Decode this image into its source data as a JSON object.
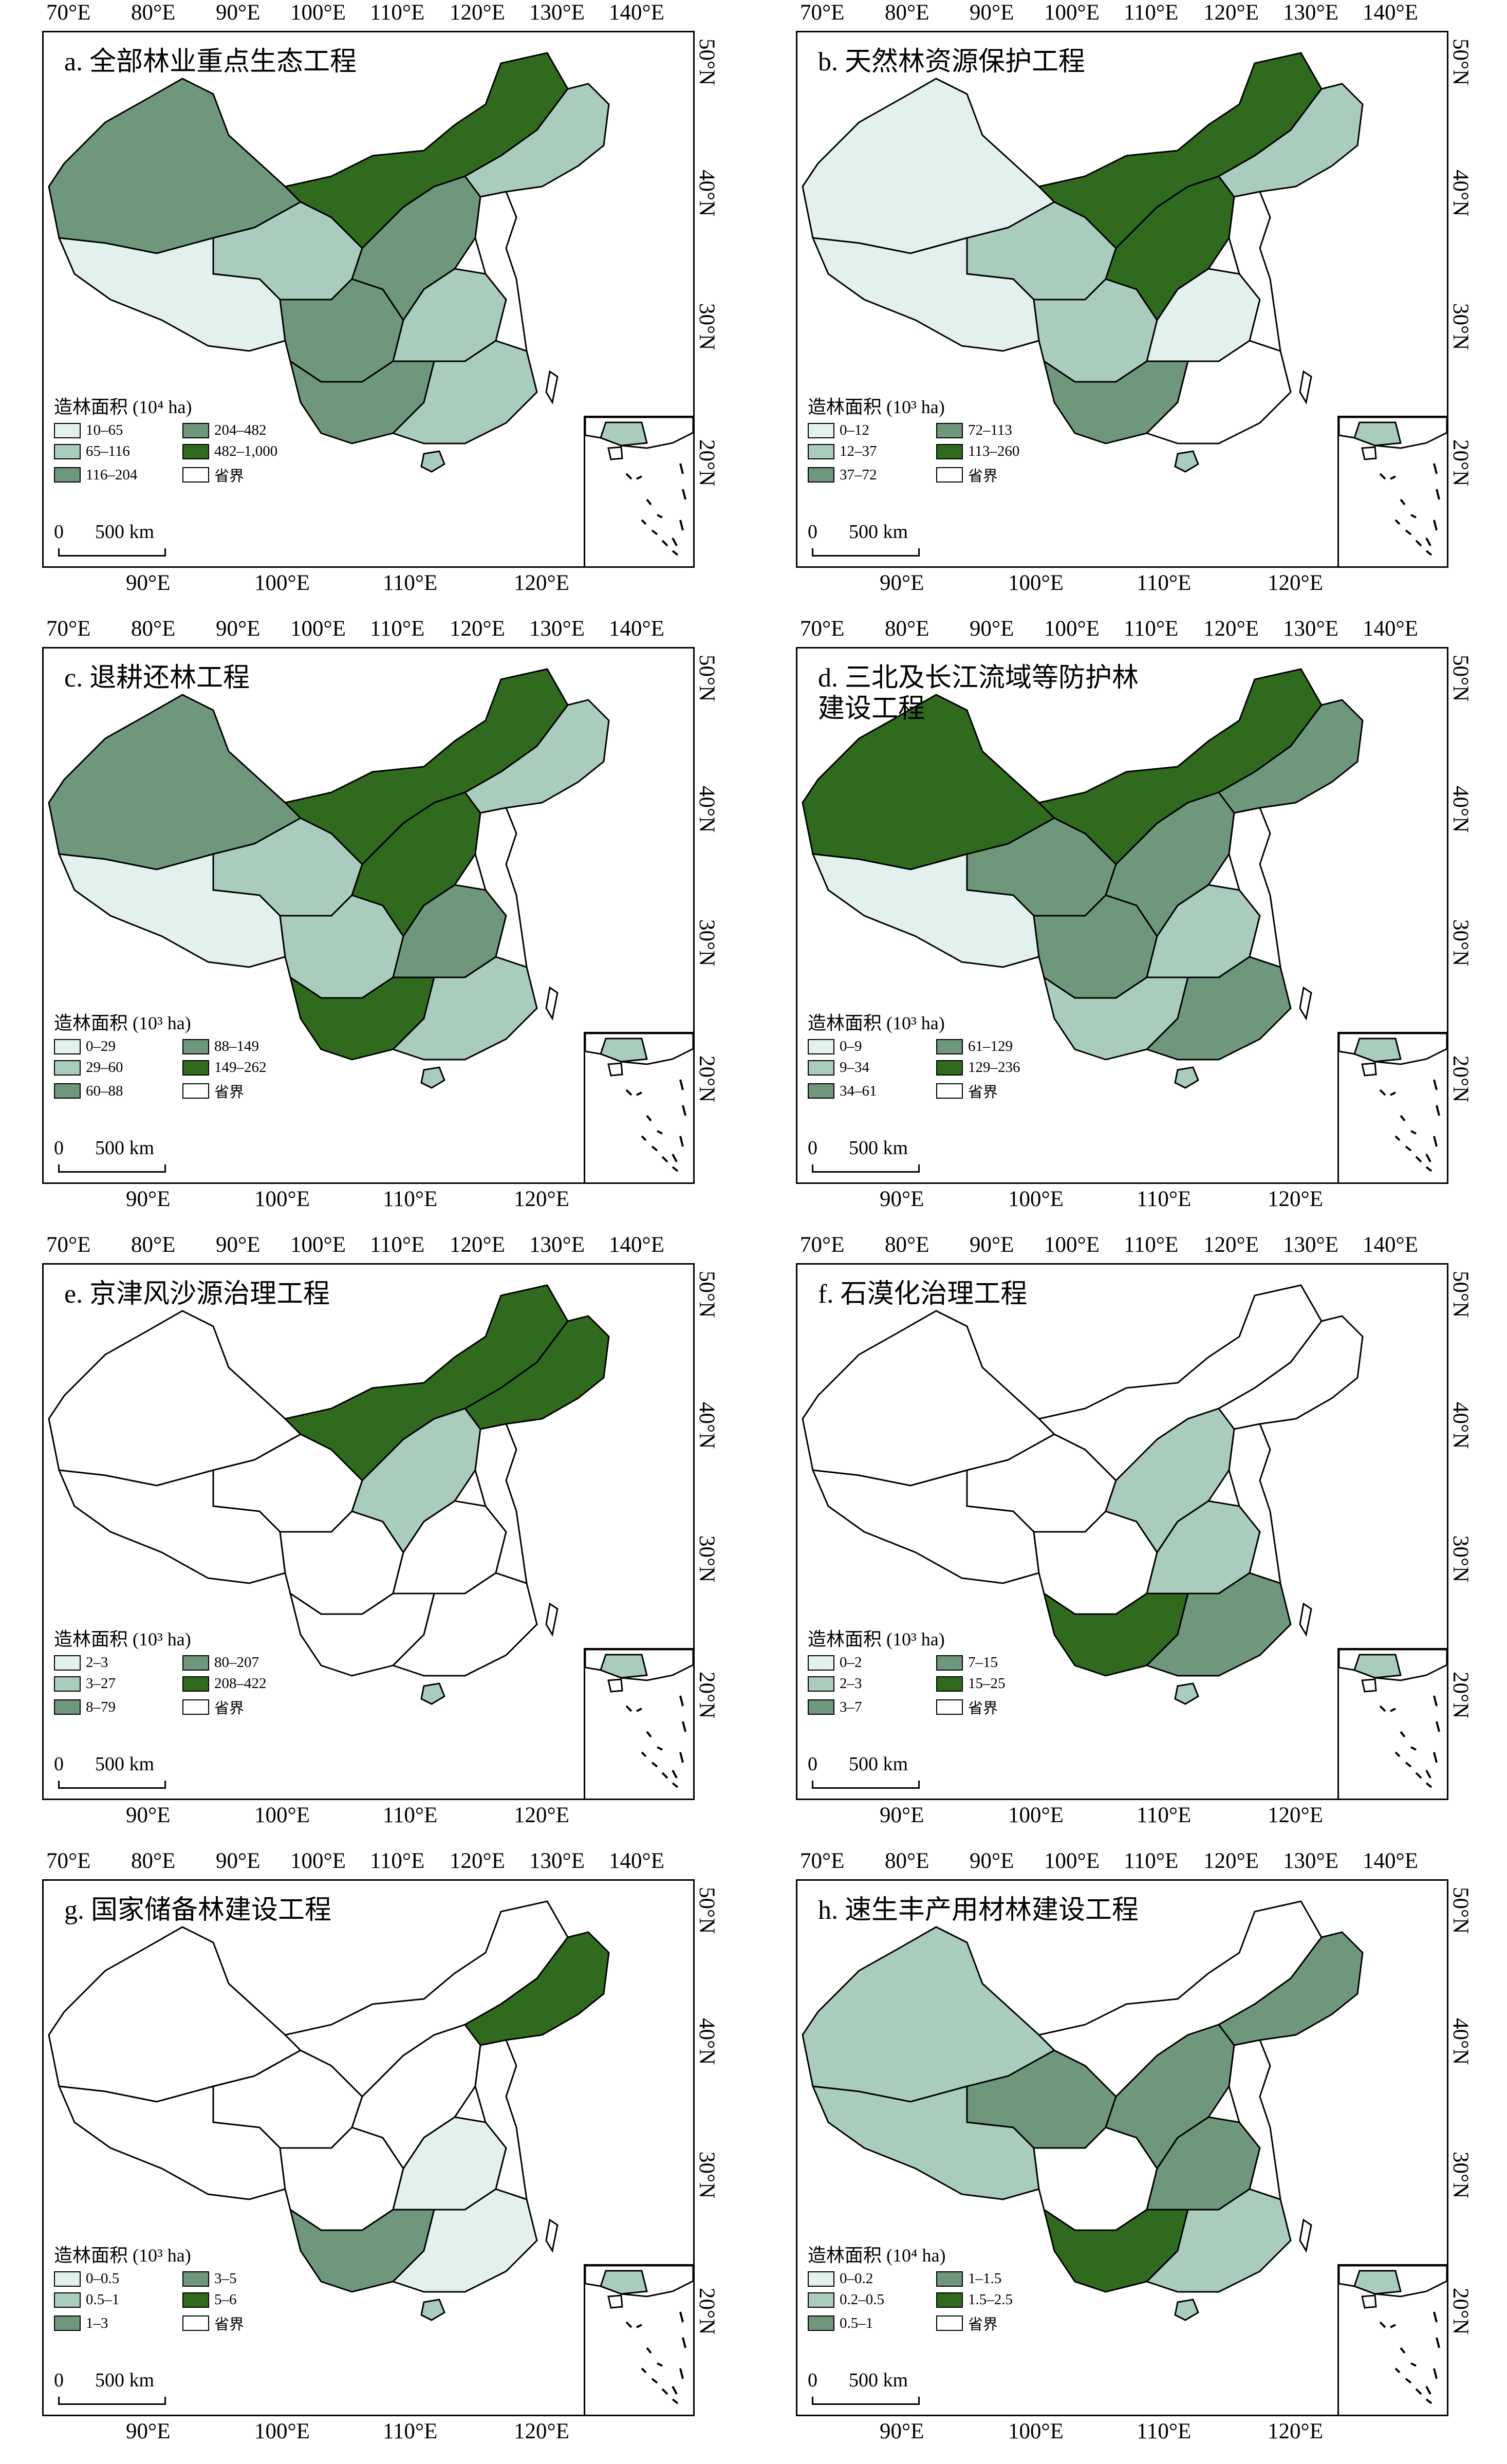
{
  "colors": {
    "c1": "#e2f1ee",
    "c2": "#a9ccbd",
    "c3": "#6f977b",
    "c4": "#2f6a1e",
    "none": "#ffffff",
    "border": "#000000"
  },
  "axis": {
    "top_lon": [
      "70°E",
      "80°E",
      "90°E",
      "100°E",
      "110°E",
      "120°E",
      "130°E",
      "140°E"
    ],
    "bottom_lon": [
      "90°E",
      "100°E",
      "110°E",
      "120°E"
    ],
    "lat": [
      "50°N",
      "40°N",
      "30°N",
      "20°N"
    ]
  },
  "legend_common": {
    "boundary_label": "省界",
    "scale_zero": "0",
    "scale_text": "500 km"
  },
  "panels": [
    {
      "title": "a. 全部林业重点生态工程",
      "legend_title": "造林面积 (10⁴ ha)",
      "classes": [
        "10–65",
        "65–116",
        "116–204",
        "204–482",
        "482–1,000"
      ],
      "regions": [
        "c3",
        "c2",
        "c1",
        "c3",
        "c4",
        "c3",
        "c2",
        "c3",
        "c2",
        "c2"
      ]
    },
    {
      "title": "b. 天然林资源保护工程",
      "legend_title": "造林面积 (10³ ha)",
      "classes": [
        "0–12",
        "12–37",
        "37–72",
        "72–113",
        "113–260"
      ],
      "regions": [
        "c1",
        "c2",
        "c1",
        "c2",
        "c4",
        "c4",
        "c1",
        "c3",
        "none",
        "c2"
      ]
    },
    {
      "title": "c. 退耕还林工程",
      "legend_title": "造林面积 (10³ ha)",
      "classes": [
        "0–29",
        "29–60",
        "60–88",
        "88–149",
        "149–262"
      ],
      "regions": [
        "c3",
        "c2",
        "c1",
        "c2",
        "c4",
        "c4",
        "c3",
        "c4",
        "c2",
        "c2"
      ]
    },
    {
      "title": "d. 三北及长江流域等防护林\n建设工程",
      "legend_title": "造林面积 (10³ ha)",
      "classes": [
        "0–9",
        "9–34",
        "34–61",
        "61–129",
        "129–236"
      ],
      "regions": [
        "c4",
        "c3",
        "c1",
        "c3",
        "c4",
        "c3",
        "c2",
        "c2",
        "c3",
        "c3"
      ]
    },
    {
      "title": "e. 京津风沙源治理工程",
      "legend_title": "造林面积 (10³ ha)",
      "classes": [
        "2–3",
        "3–27",
        "8–79",
        "80–207",
        "208–422"
      ],
      "regions": [
        "none",
        "none",
        "none",
        "none",
        "c4",
        "c2",
        "none",
        "none",
        "none",
        "c4"
      ]
    },
    {
      "title": "f. 石漠化治理工程",
      "legend_title": "造林面积 (10³ ha)",
      "classes": [
        "0–2",
        "2–3",
        "3–7",
        "7–15",
        "15–25"
      ],
      "regions": [
        "none",
        "none",
        "none",
        "none",
        "none",
        "c2",
        "c2",
        "c4",
        "c3",
        "none"
      ]
    },
    {
      "title": "g. 国家储备林建设工程",
      "legend_title": "造林面积 (10³ ha)",
      "classes": [
        "0–0.5",
        "0.5–1",
        "1–3",
        "3–5",
        "5–6"
      ],
      "regions": [
        "none",
        "none",
        "none",
        "none",
        "none",
        "none",
        "c1",
        "c3",
        "c1",
        "c4"
      ]
    },
    {
      "title": "h. 速生丰产用材林建设工程",
      "legend_title": "造林面积 (10⁴ ha)",
      "classes": [
        "0–0.2",
        "0.2–0.5",
        "0.5–1",
        "1–1.5",
        "1.5–2.5"
      ],
      "regions": [
        "c2",
        "c3",
        "c2",
        "none",
        "none",
        "c3",
        "c3",
        "c4",
        "c2",
        "c3"
      ]
    }
  ]
}
